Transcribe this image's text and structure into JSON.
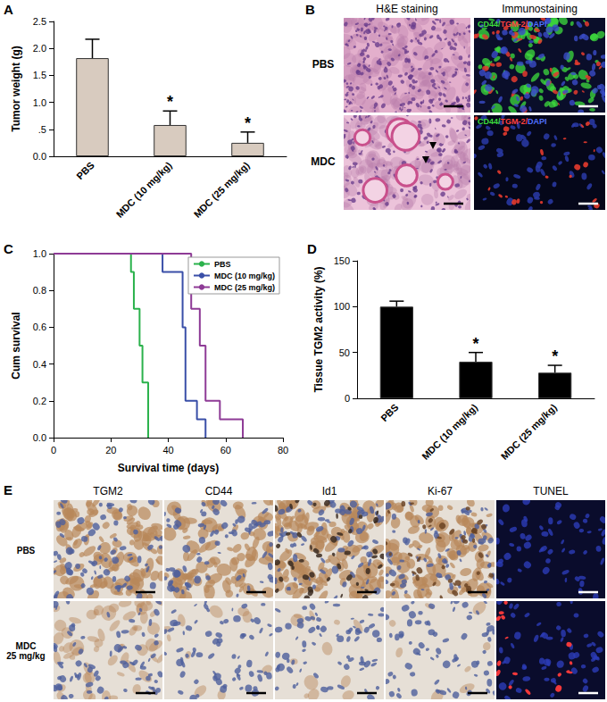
{
  "chart_data": [
    {
      "panel_label": "A",
      "type": "bar",
      "y_label": "Tumor weight (g)",
      "categories": [
        "PBS",
        "MDC (10 mg/kg)",
        "MDC (25 mg/kg)"
      ],
      "values": [
        1.82,
        0.58,
        0.25
      ],
      "errors": [
        0.35,
        0.26,
        0.2
      ],
      "annotations": [
        {
          "category": "MDC (10 mg/kg)",
          "text": "*"
        },
        {
          "category": "MDC (25 mg/kg)",
          "text": "*"
        }
      ],
      "color": "#d8cbbf",
      "ylim": [
        0,
        2.5
      ],
      "yticks": [
        {
          "value": 0,
          "label": "0.0"
        },
        {
          "value": 0.5,
          "label": ".5"
        },
        {
          "value": 1,
          "label": "1.0"
        },
        1.5,
        {
          "value": 2,
          "label": "2.0"
        },
        2.5
      ],
      "grid": false
    },
    {
      "panel_label": "C",
      "type": "step",
      "x_label": "Survival time (days)",
      "y_label": "Cum survival",
      "series": [
        {
          "name": "PBS",
          "color": "#2bb24c",
          "x": [
            0,
            27,
            28,
            30,
            31,
            33
          ],
          "values": [
            1.0,
            0.9,
            0.7,
            0.5,
            0.3,
            0.0
          ]
        },
        {
          "name": "MDC (10 mg/kg)",
          "color": "#3a4fa8",
          "x": [
            0,
            38,
            45,
            46,
            50,
            53
          ],
          "values": [
            1.0,
            0.9,
            0.6,
            0.2,
            0.1,
            0.0
          ]
        },
        {
          "name": "MDC (25 mg/kg)",
          "color": "#8e3b96",
          "x": [
            0,
            48,
            51,
            53,
            58,
            66
          ],
          "values": [
            1.0,
            0.7,
            0.5,
            0.2,
            0.1,
            0.0
          ]
        }
      ],
      "xlim": [
        0,
        80
      ],
      "xticks": [
        0,
        20,
        40,
        60,
        80
      ],
      "ylim": [
        0,
        1
      ],
      "yticks": [
        {
          "value": 0,
          "label": "0.0"
        },
        0.2,
        0.4,
        0.6,
        0.8,
        {
          "value": 1,
          "label": "1.0"
        }
      ],
      "legend": "upper right",
      "line_style": "solid",
      "grid": false
    },
    {
      "panel_label": "D",
      "type": "bar",
      "y_label": "Tissue TGM2 activity (%)",
      "categories": [
        "PBS",
        "MDC (10 mg/kg)",
        "MDC (25 mg/kg)"
      ],
      "values": [
        100,
        40,
        28
      ],
      "errors": [
        6,
        10,
        8
      ],
      "annotations": [
        {
          "category": "MDC (10 mg/kg)",
          "text": "*"
        },
        {
          "category": "MDC (25 mg/kg)",
          "text": "*"
        }
      ],
      "color": "#000000",
      "ylim": [
        0,
        150
      ],
      "yticks": [
        0,
        50,
        100,
        150
      ],
      "grid": false
    }
  ],
  "image_panels": [
    {
      "panel_label": "B",
      "column_titles": [
        "H&E staining",
        "Immunostaining"
      ],
      "row_labels": [
        "PBS",
        "MDC"
      ],
      "stain_label_parts": [
        {
          "text": "CD44/",
          "color": "#3ddc3d"
        },
        {
          "text": "TGM-2/",
          "color": "#ff4040"
        },
        {
          "text": "DAPI",
          "color": "#5070ff"
        }
      ]
    },
    {
      "panel_label": "E",
      "column_titles": [
        "TGM2",
        "CD44",
        "Id1",
        "Ki-67",
        "TUNEL"
      ],
      "row_labels": [
        [
          "PBS"
        ],
        [
          "MDC",
          "25 mg/kg"
        ]
      ]
    }
  ]
}
